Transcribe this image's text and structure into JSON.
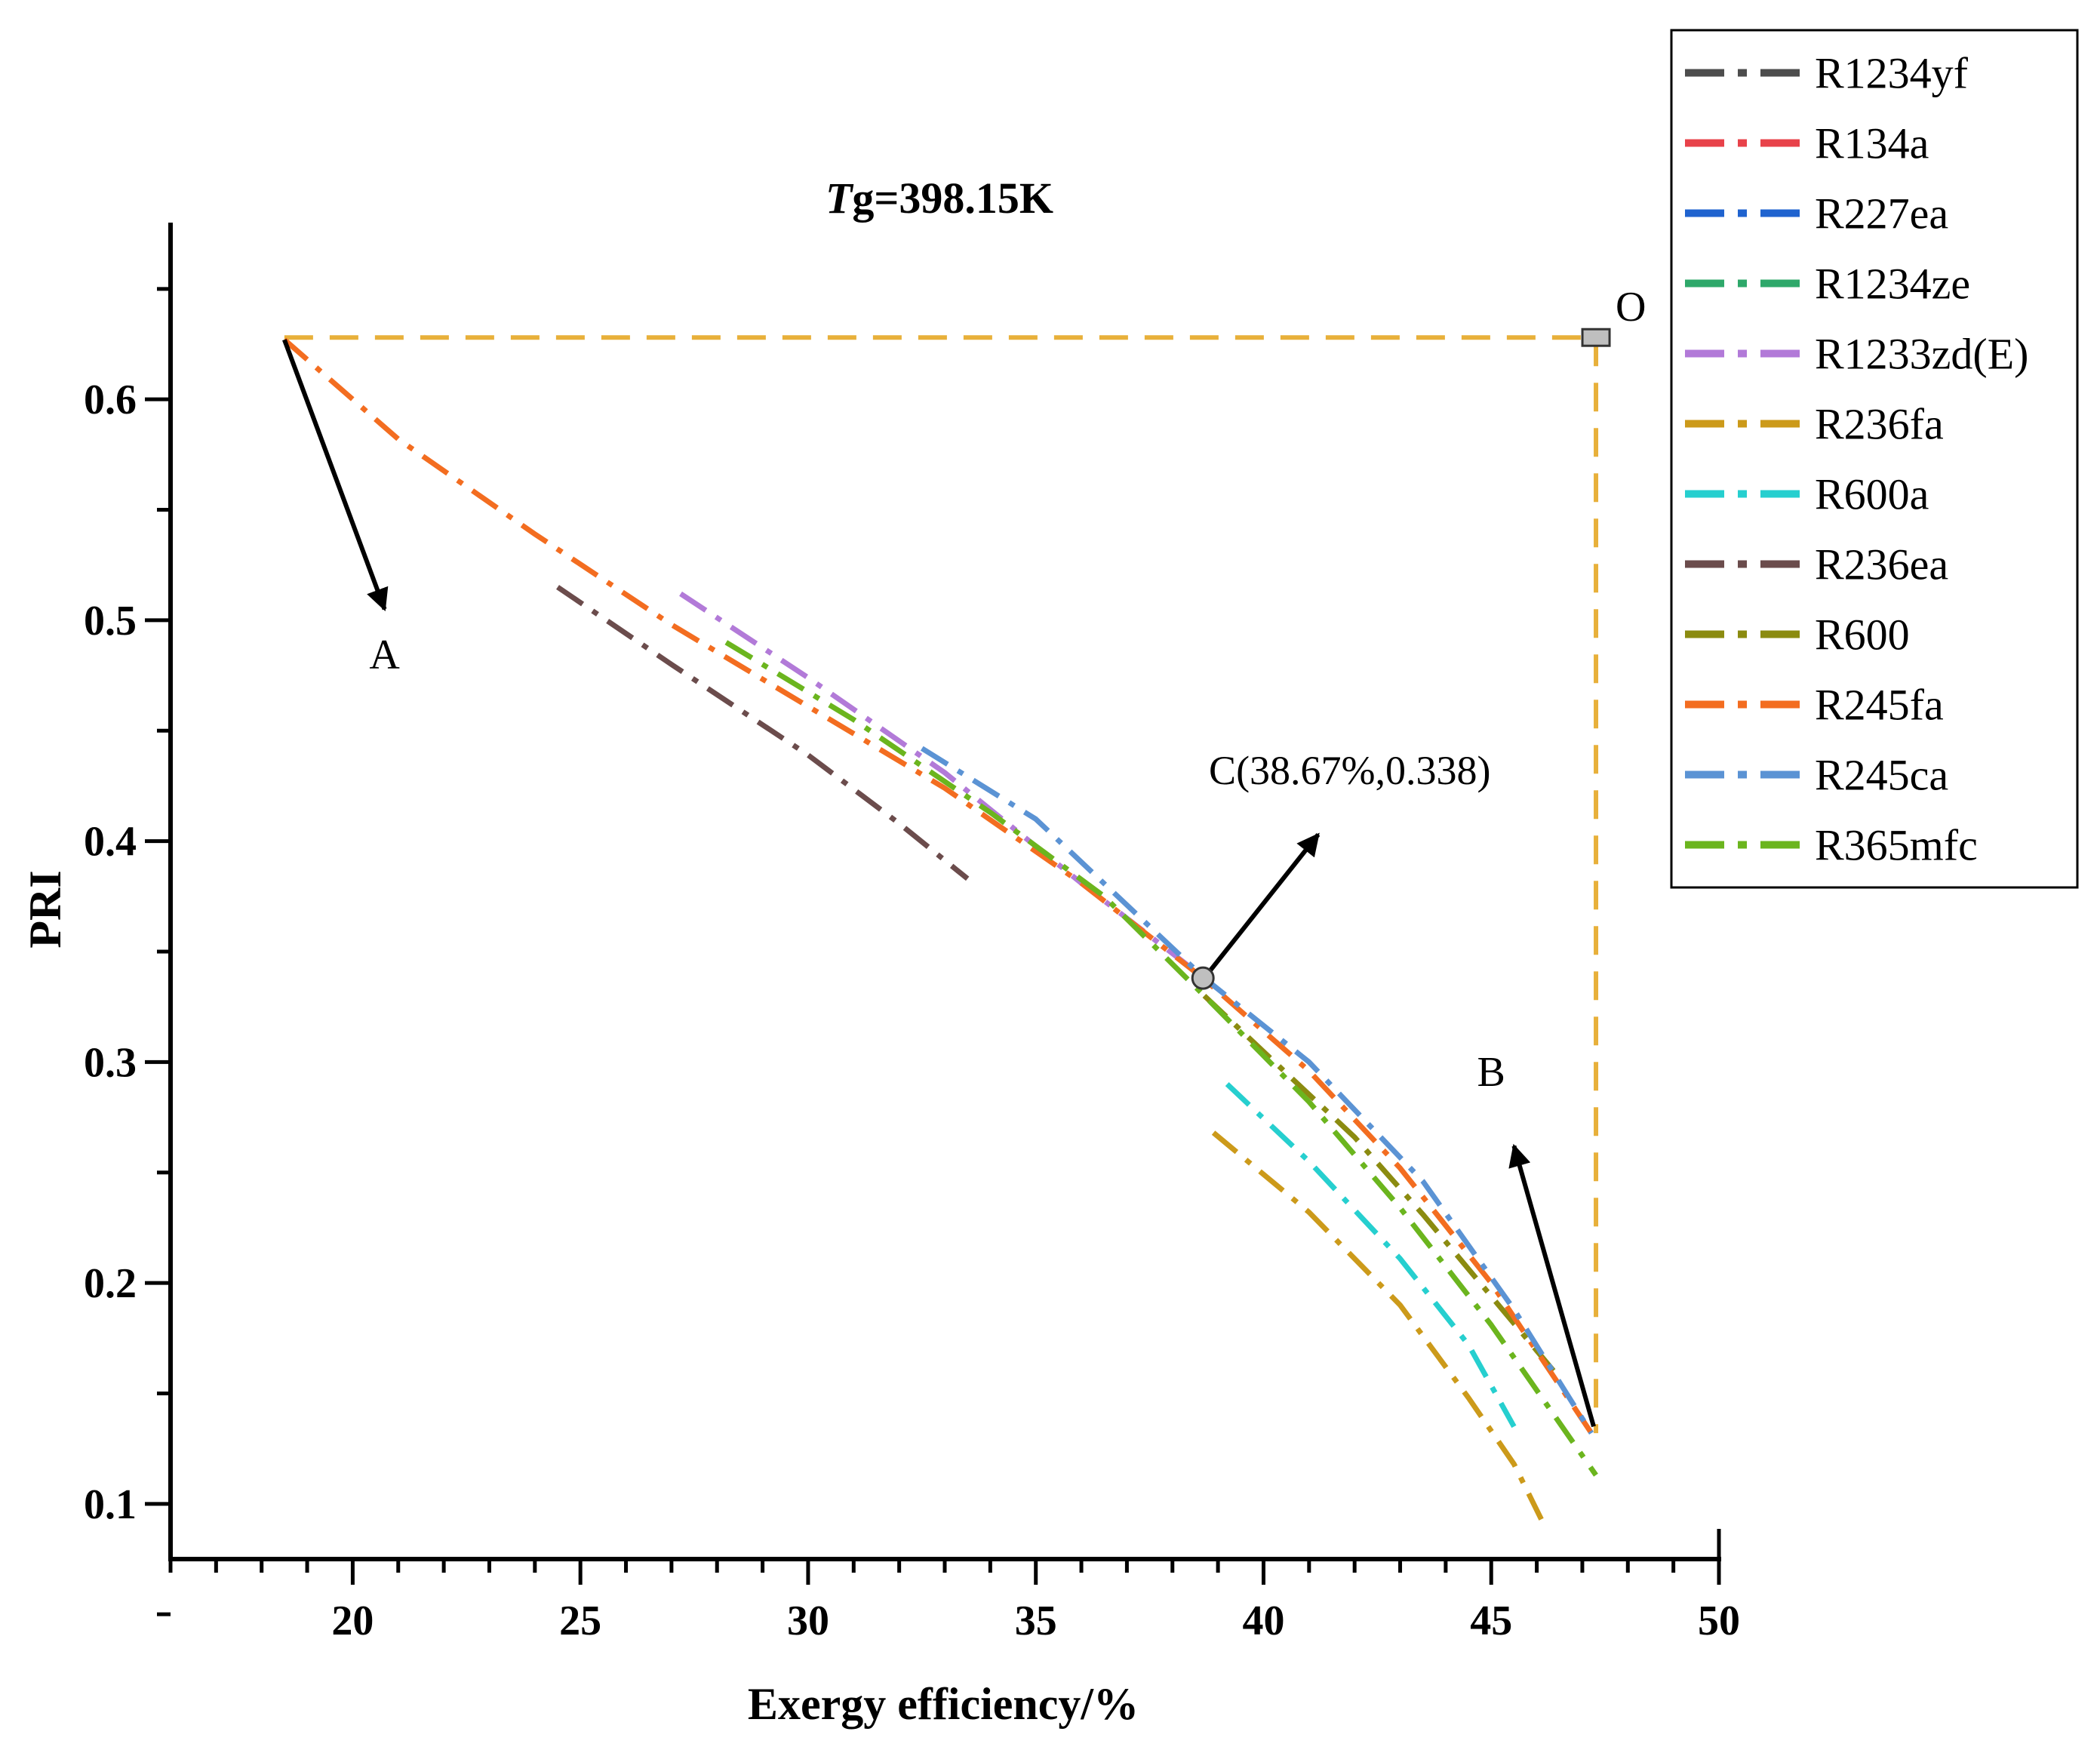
{
  "chart_data": {
    "type": "line",
    "title": {
      "italic": "T",
      "rest": "g=398.15K"
    },
    "xlabel": "Exergy efficiency/%",
    "ylabel": "PRI",
    "xlim": [
      16,
      50
    ],
    "ylim": [
      0.075,
      0.68
    ],
    "xticks": [
      20,
      25,
      30,
      35,
      40,
      45,
      50
    ],
    "xtick_labels": [
      "20",
      "25",
      "30",
      "35",
      "40",
      "45",
      "50"
    ],
    "yticks": [
      0.1,
      0.2,
      0.3,
      0.4,
      0.5,
      0.6
    ],
    "ytick_labels": [
      "0.1",
      "0.2",
      "0.3",
      "0.4",
      "0.5",
      "0.6"
    ],
    "legend_position": "top-right",
    "series": [
      {
        "name": "R1234yf",
        "color": "#4d4d4d",
        "x": [],
        "y": []
      },
      {
        "name": "R134a",
        "color": "#e8424a",
        "x": [],
        "y": []
      },
      {
        "name": "R227ea",
        "color": "#1f63cf",
        "x": [],
        "y": []
      },
      {
        "name": "R1234ze",
        "color": "#2ea86a",
        "x": [],
        "y": []
      },
      {
        "name": "R1233zd(E)",
        "color": "#b27ad8",
        "x": [
          27.2,
          30,
          33,
          36,
          38.7
        ],
        "y": [
          0.512,
          0.474,
          0.431,
          0.381,
          0.338
        ]
      },
      {
        "name": "R236fa",
        "color": "#cc9a1a",
        "x": [
          38.9,
          41,
          43,
          44.5,
          45.5,
          46.1
        ],
        "y": [
          0.268,
          0.232,
          0.19,
          0.148,
          0.118,
          0.093
        ]
      },
      {
        "name": "R600a",
        "color": "#26cfcf",
        "x": [
          39.2,
          41,
          43,
          44.5,
          45.5
        ],
        "y": [
          0.29,
          0.255,
          0.211,
          0.172,
          0.135
        ]
      },
      {
        "name": "R236ea",
        "color": "#6b4c4c",
        "x": [
          24.5,
          27,
          30,
          32,
          33.5
        ],
        "y": [
          0.515,
          0.48,
          0.439,
          0.408,
          0.383
        ]
      },
      {
        "name": "R600",
        "color": "#8b8b10",
        "x": [
          38.7,
          40.5,
          42,
          43.5,
          45,
          46.5
        ],
        "y": [
          0.33,
          0.295,
          0.266,
          0.231,
          0.194,
          0.157
        ]
      },
      {
        "name": "R245fa",
        "color": "#f36d20",
        "x": [
          18.5,
          21,
          24,
          27,
          30,
          33,
          36,
          38.67,
          41,
          43,
          45,
          47.2
        ],
        "y": [
          0.627,
          0.582,
          0.539,
          0.498,
          0.461,
          0.424,
          0.381,
          0.338,
          0.296,
          0.252,
          0.2,
          0.132
        ]
      },
      {
        "name": "R245ca",
        "color": "#5b93d4",
        "x": [
          32.5,
          35,
          38.7,
          41,
          43.5,
          45.5,
          47.2
        ],
        "y": [
          0.442,
          0.41,
          0.338,
          0.3,
          0.246,
          0.188,
          0.132
        ]
      },
      {
        "name": "R365mfc",
        "color": "#6bb51e",
        "x": [
          28.2,
          31,
          34,
          36.5,
          38.7,
          41,
          43,
          45,
          47.3
        ],
        "y": [
          0.49,
          0.455,
          0.413,
          0.375,
          0.33,
          0.282,
          0.234,
          0.181,
          0.113
        ]
      }
    ],
    "reference_lines": {
      "color": "#e8b03a",
      "horizontal": {
        "y": 0.628,
        "x_from": 18.5,
        "x_to": 47.3
      },
      "vertical": {
        "x": 47.3,
        "y_from": 0.628,
        "y_to": 0.132
      }
    },
    "annotations": [
      {
        "label": "O",
        "x": 47.3,
        "y": 0.628
      },
      {
        "label": "A",
        "x": 20.7,
        "y": 0.485
      },
      {
        "label": "B",
        "x": 45.0,
        "y": 0.296
      },
      {
        "label": "C(38.67%,0.338)",
        "x": 38.67,
        "y": 0.338
      }
    ]
  }
}
